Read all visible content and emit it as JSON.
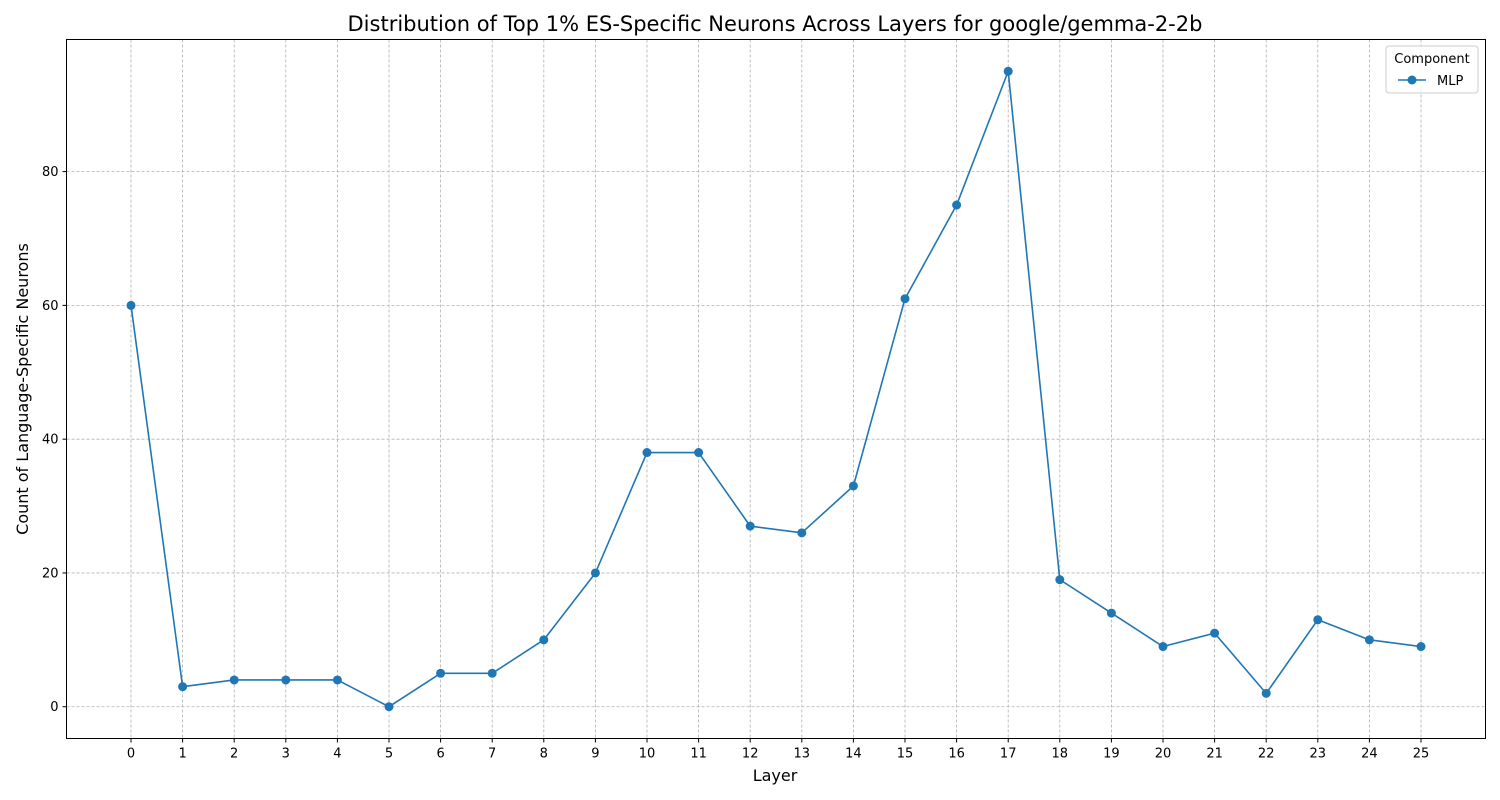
{
  "chart_data": {
    "type": "line",
    "title": "Distribution of Top 1% ES-Specific Neurons Across Layers for google/gemma-2-2b",
    "xlabel": "Layer",
    "ylabel": "Count of Language-Specific Neurons",
    "x": [
      0,
      1,
      2,
      3,
      4,
      5,
      6,
      7,
      8,
      9,
      10,
      11,
      12,
      13,
      14,
      15,
      16,
      17,
      18,
      19,
      20,
      21,
      22,
      23,
      24,
      25
    ],
    "xticks": [
      "0",
      "1",
      "2",
      "3",
      "4",
      "5",
      "6",
      "7",
      "8",
      "9",
      "10",
      "11",
      "12",
      "13",
      "14",
      "15",
      "16",
      "17",
      "18",
      "19",
      "20",
      "21",
      "22",
      "23",
      "24",
      "25"
    ],
    "xlim": [
      -1.25,
      26.25
    ],
    "ylim": [
      -4.75,
      99.75
    ],
    "yticks": [
      "0",
      "20",
      "40",
      "60",
      "80"
    ],
    "grid": true,
    "legend": {
      "title": "Component",
      "placement": "top-right"
    },
    "series": [
      {
        "name": "MLP",
        "color": "#1f77b4",
        "marker": "circle",
        "values": [
          60,
          3,
          4,
          4,
          4,
          0,
          5,
          5,
          10,
          20,
          38,
          38,
          27,
          26,
          33,
          61,
          75,
          95,
          19,
          14,
          9,
          11,
          2,
          13,
          10,
          9
        ]
      }
    ]
  }
}
